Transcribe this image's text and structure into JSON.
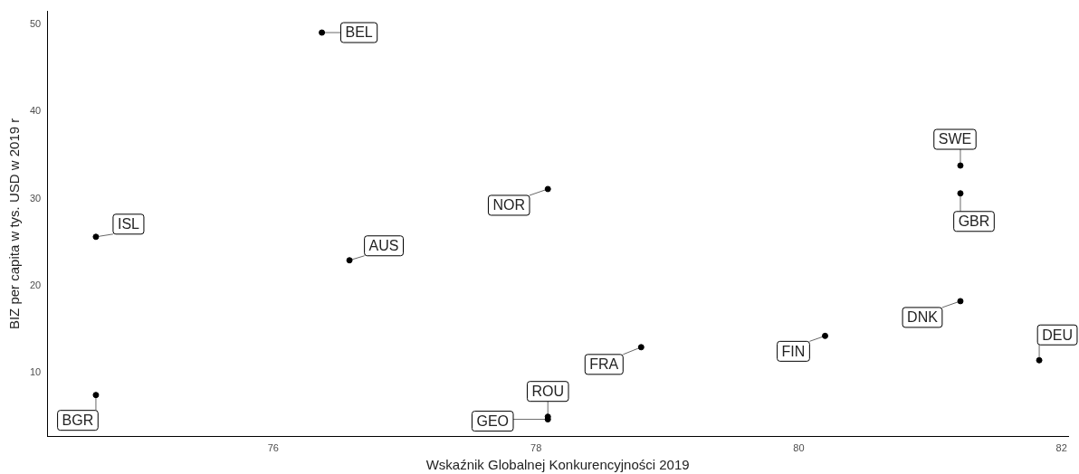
{
  "chart_data": {
    "type": "scatter",
    "xlabel": "Wskaźnik Globalnej Konkurencyjności 2019",
    "ylabel": "BIZ per capita w tys. USD w 2019 r",
    "x": [
      76.37,
      74.65,
      74.65,
      76.58,
      78.09,
      78.09,
      78.09,
      78.8,
      80.2,
      81.23,
      81.23,
      81.23,
      81.83
    ],
    "series": [
      {
        "color": "#000000",
        "values": [
          49.1,
          25.6,
          7.4,
          22.9,
          31.1,
          4.9,
          4.6,
          12.9,
          14.2,
          18.2,
          33.8,
          30.6,
          11.4
        ]
      }
    ],
    "annotations": [
      {
        "text": "BEL",
        "x": 76.37,
        "y": 49.1
      },
      {
        "text": "ISL",
        "x": 74.65,
        "y": 25.6
      },
      {
        "text": "BGR",
        "x": 74.65,
        "y": 7.4
      },
      {
        "text": "AUS",
        "x": 76.58,
        "y": 22.9
      },
      {
        "text": "NOR",
        "x": 78.09,
        "y": 31.1
      },
      {
        "text": "ROU",
        "x": 78.09,
        "y": 4.9
      },
      {
        "text": "GEO",
        "x": 78.09,
        "y": 4.6
      },
      {
        "text": "FRA",
        "x": 78.8,
        "y": 12.9
      },
      {
        "text": "FIN",
        "x": 80.2,
        "y": 14.2
      },
      {
        "text": "DNK",
        "x": 81.23,
        "y": 18.2
      },
      {
        "text": "SWE",
        "x": 81.23,
        "y": 33.8
      },
      {
        "text": "GBR",
        "x": 81.23,
        "y": 30.6
      },
      {
        "text": "DEU",
        "x": 81.83,
        "y": 11.4
      }
    ],
    "xlim": [
      74.28,
      82.05
    ],
    "ylim": [
      2.6,
      51.6
    ],
    "xticks": [
      76,
      78,
      80,
      82
    ],
    "yticks": [
      10,
      20,
      30,
      40,
      50
    ],
    "grid": false,
    "legend": false,
    "marker": "circle"
  }
}
